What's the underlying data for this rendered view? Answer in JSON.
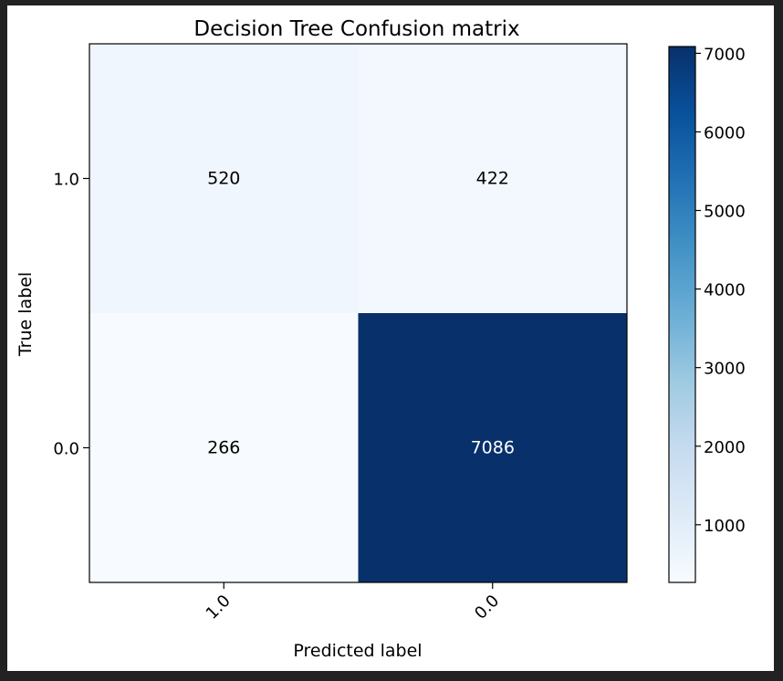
{
  "chart_data": {
    "type": "heatmap",
    "title": "Decision Tree Confusion matrix",
    "xlabel": "Predicted label",
    "ylabel": "True label",
    "x_categories": [
      "1.0",
      "0.0"
    ],
    "y_categories": [
      "1.0",
      "0.0"
    ],
    "matrix": [
      [
        520,
        422
      ],
      [
        266,
        7086
      ]
    ],
    "colormap": "Blues",
    "colorbar": {
      "min": 266,
      "max": 7086,
      "ticks": [
        1000,
        2000,
        3000,
        4000,
        5000,
        6000,
        7000
      ]
    },
    "grid": false
  },
  "colors": {
    "page_background": "#222222",
    "figure_background": "#ffffff",
    "text_dark": "#000000",
    "text_light": "#ffffff"
  }
}
